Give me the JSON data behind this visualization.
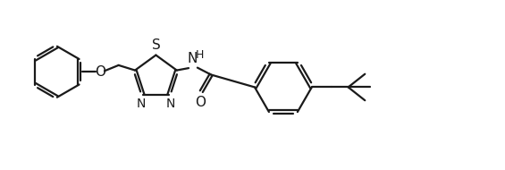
{
  "background_color": "#ffffff",
  "line_color": "#1a1a1a",
  "line_width": 1.6,
  "figsize": [
    5.65,
    1.9
  ],
  "dpi": 100,
  "xlim": [
    0,
    11.5
  ],
  "ylim": [
    0,
    3.8
  ]
}
